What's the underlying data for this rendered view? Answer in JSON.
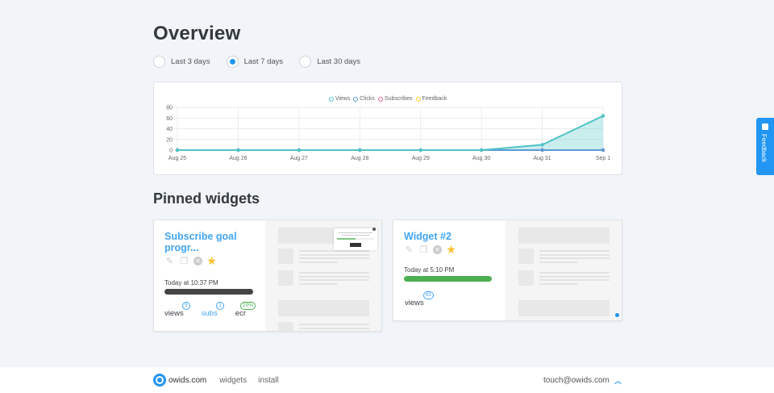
{
  "page": {
    "title": "Overview",
    "pinned_title": "Pinned widgets"
  },
  "range": {
    "options": [
      {
        "label": "Last 3 days",
        "selected": false
      },
      {
        "label": "Last 7 days",
        "selected": true
      },
      {
        "label": "Last 30 days",
        "selected": false
      }
    ]
  },
  "chart_data": {
    "type": "area",
    "title": "",
    "categories": [
      "Aug 25",
      "Aug 26",
      "Aug 27",
      "Aug 28",
      "Aug 29",
      "Aug 30",
      "Aug 31",
      "Sep 1"
    ],
    "series": [
      {
        "name": "Views",
        "color": "#4fc3c7",
        "values": [
          0,
          0,
          0,
          0,
          0,
          0,
          10,
          64
        ]
      },
      {
        "name": "Clicks",
        "color": "#5b9bd5",
        "values": [
          0,
          0,
          0,
          0,
          0,
          0,
          0,
          0
        ]
      },
      {
        "name": "Subscribes",
        "color": "#f06292",
        "values": [
          0,
          0,
          0,
          0,
          0,
          0,
          0,
          0
        ]
      },
      {
        "name": "Feedback",
        "color": "#ffca28",
        "values": [
          0,
          0,
          0,
          0,
          0,
          0,
          0,
          0
        ]
      }
    ],
    "yticks": [
      0,
      20,
      40,
      60,
      80
    ],
    "ylim": [
      0,
      80
    ],
    "grid": true,
    "legend_position": "top"
  },
  "widgets": [
    {
      "name": "Subscribe goal progr...",
      "time": "Today at 10:37 PM",
      "bar_color": "#444444",
      "stats": [
        {
          "label": "views",
          "value": "5",
          "color": "#333"
        },
        {
          "label": "subs",
          "value": "1",
          "color": "#42a5f5"
        },
        {
          "label": "ecr",
          "value": "20%",
          "color": "#333"
        }
      ]
    },
    {
      "name": "Widget #2",
      "time": "Today at 5:10 PM",
      "bar_color": "#4caf50",
      "stats": [
        {
          "label": "views",
          "value": "43",
          "color": "#333"
        }
      ]
    }
  ],
  "footer": {
    "brand": "owids.com",
    "links": [
      "widgets",
      "install"
    ],
    "email": "touch@owids.com",
    "chevron": "^"
  },
  "feedback_tab": {
    "label": "Feedback"
  }
}
